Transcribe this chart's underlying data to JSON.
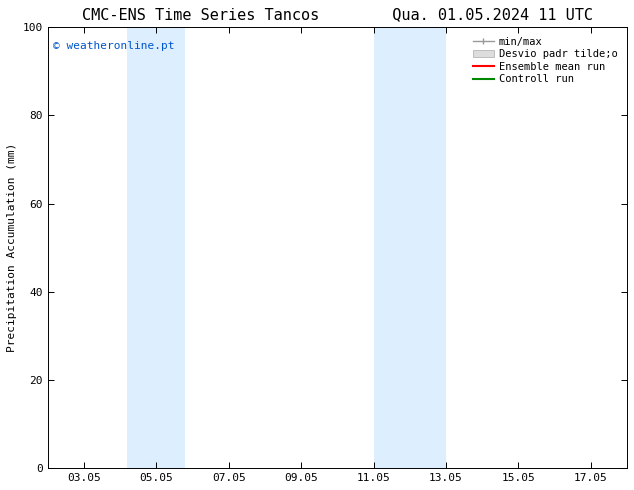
{
  "title_left": "CMC-ENS Time Series Tancos",
  "title_right": "Qua. 01.05.2024 11 UTC",
  "ylabel": "Precipitation Accumulation (mm)",
  "ylim": [
    0,
    100
  ],
  "yticks": [
    0,
    20,
    40,
    60,
    80,
    100
  ],
  "x_labels": [
    "03.05",
    "05.05",
    "07.05",
    "09.05",
    "11.05",
    "13.05",
    "15.05",
    "17.05"
  ],
  "x_positions": [
    3,
    5,
    7,
    9,
    11,
    13,
    15,
    17
  ],
  "x_min": 2.0,
  "x_max": 18.0,
  "shaded_bands": [
    {
      "x_start": 4.2,
      "x_end": 5.8,
      "color": "#ddeeff"
    },
    {
      "x_start": 11.0,
      "x_end": 13.0,
      "color": "#ddeeff"
    }
  ],
  "watermark_text": "© weatheronline.pt",
  "watermark_color": "#0055cc",
  "legend_labels": [
    "min/max",
    "Desvio padr tilde;o",
    "Ensemble mean run",
    "Controll run"
  ],
  "legend_colors_line": [
    "#999999",
    "#ccddee",
    "#ff0000",
    "#008800"
  ],
  "bg_color": "#ffffff",
  "plot_bg_color": "#ffffff",
  "title_fontsize": 11,
  "axis_fontsize": 8,
  "tick_fontsize": 8,
  "legend_fontsize": 7.5,
  "watermark_fontsize": 8
}
